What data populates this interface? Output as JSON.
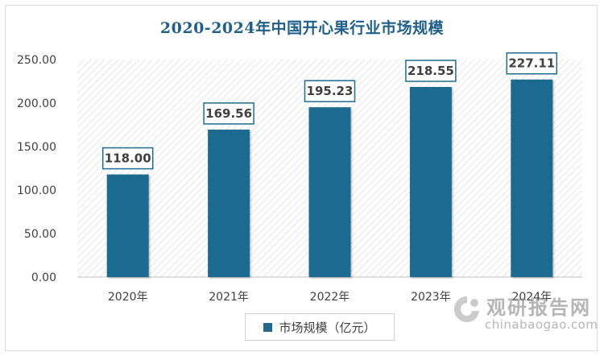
{
  "chart_data": {
    "type": "bar",
    "title": "2020-2024年中国开心果行业市场规模",
    "categories": [
      "2020年",
      "2021年",
      "2022年",
      "2023年",
      "2024年"
    ],
    "series": [
      {
        "name": "市场规模（亿元）",
        "values": [
          118.0,
          169.56,
          195.23,
          218.55,
          227.11
        ]
      }
    ],
    "value_labels": [
      "118.00",
      "169.56",
      "195.23",
      "218.55",
      "227.11"
    ],
    "y_ticks": [
      "0.00",
      "50.00",
      "100.00",
      "150.00",
      "200.00",
      "250.00"
    ],
    "ylim": [
      0,
      250
    ],
    "xlabel": "",
    "ylabel": "",
    "grid": false,
    "legend_position": "bottom",
    "bar_color": "#1e6b8f",
    "title_color": "#1f5f8b"
  },
  "watermark": {
    "cn": "观研报告网",
    "en": "chinabaogao.com"
  }
}
